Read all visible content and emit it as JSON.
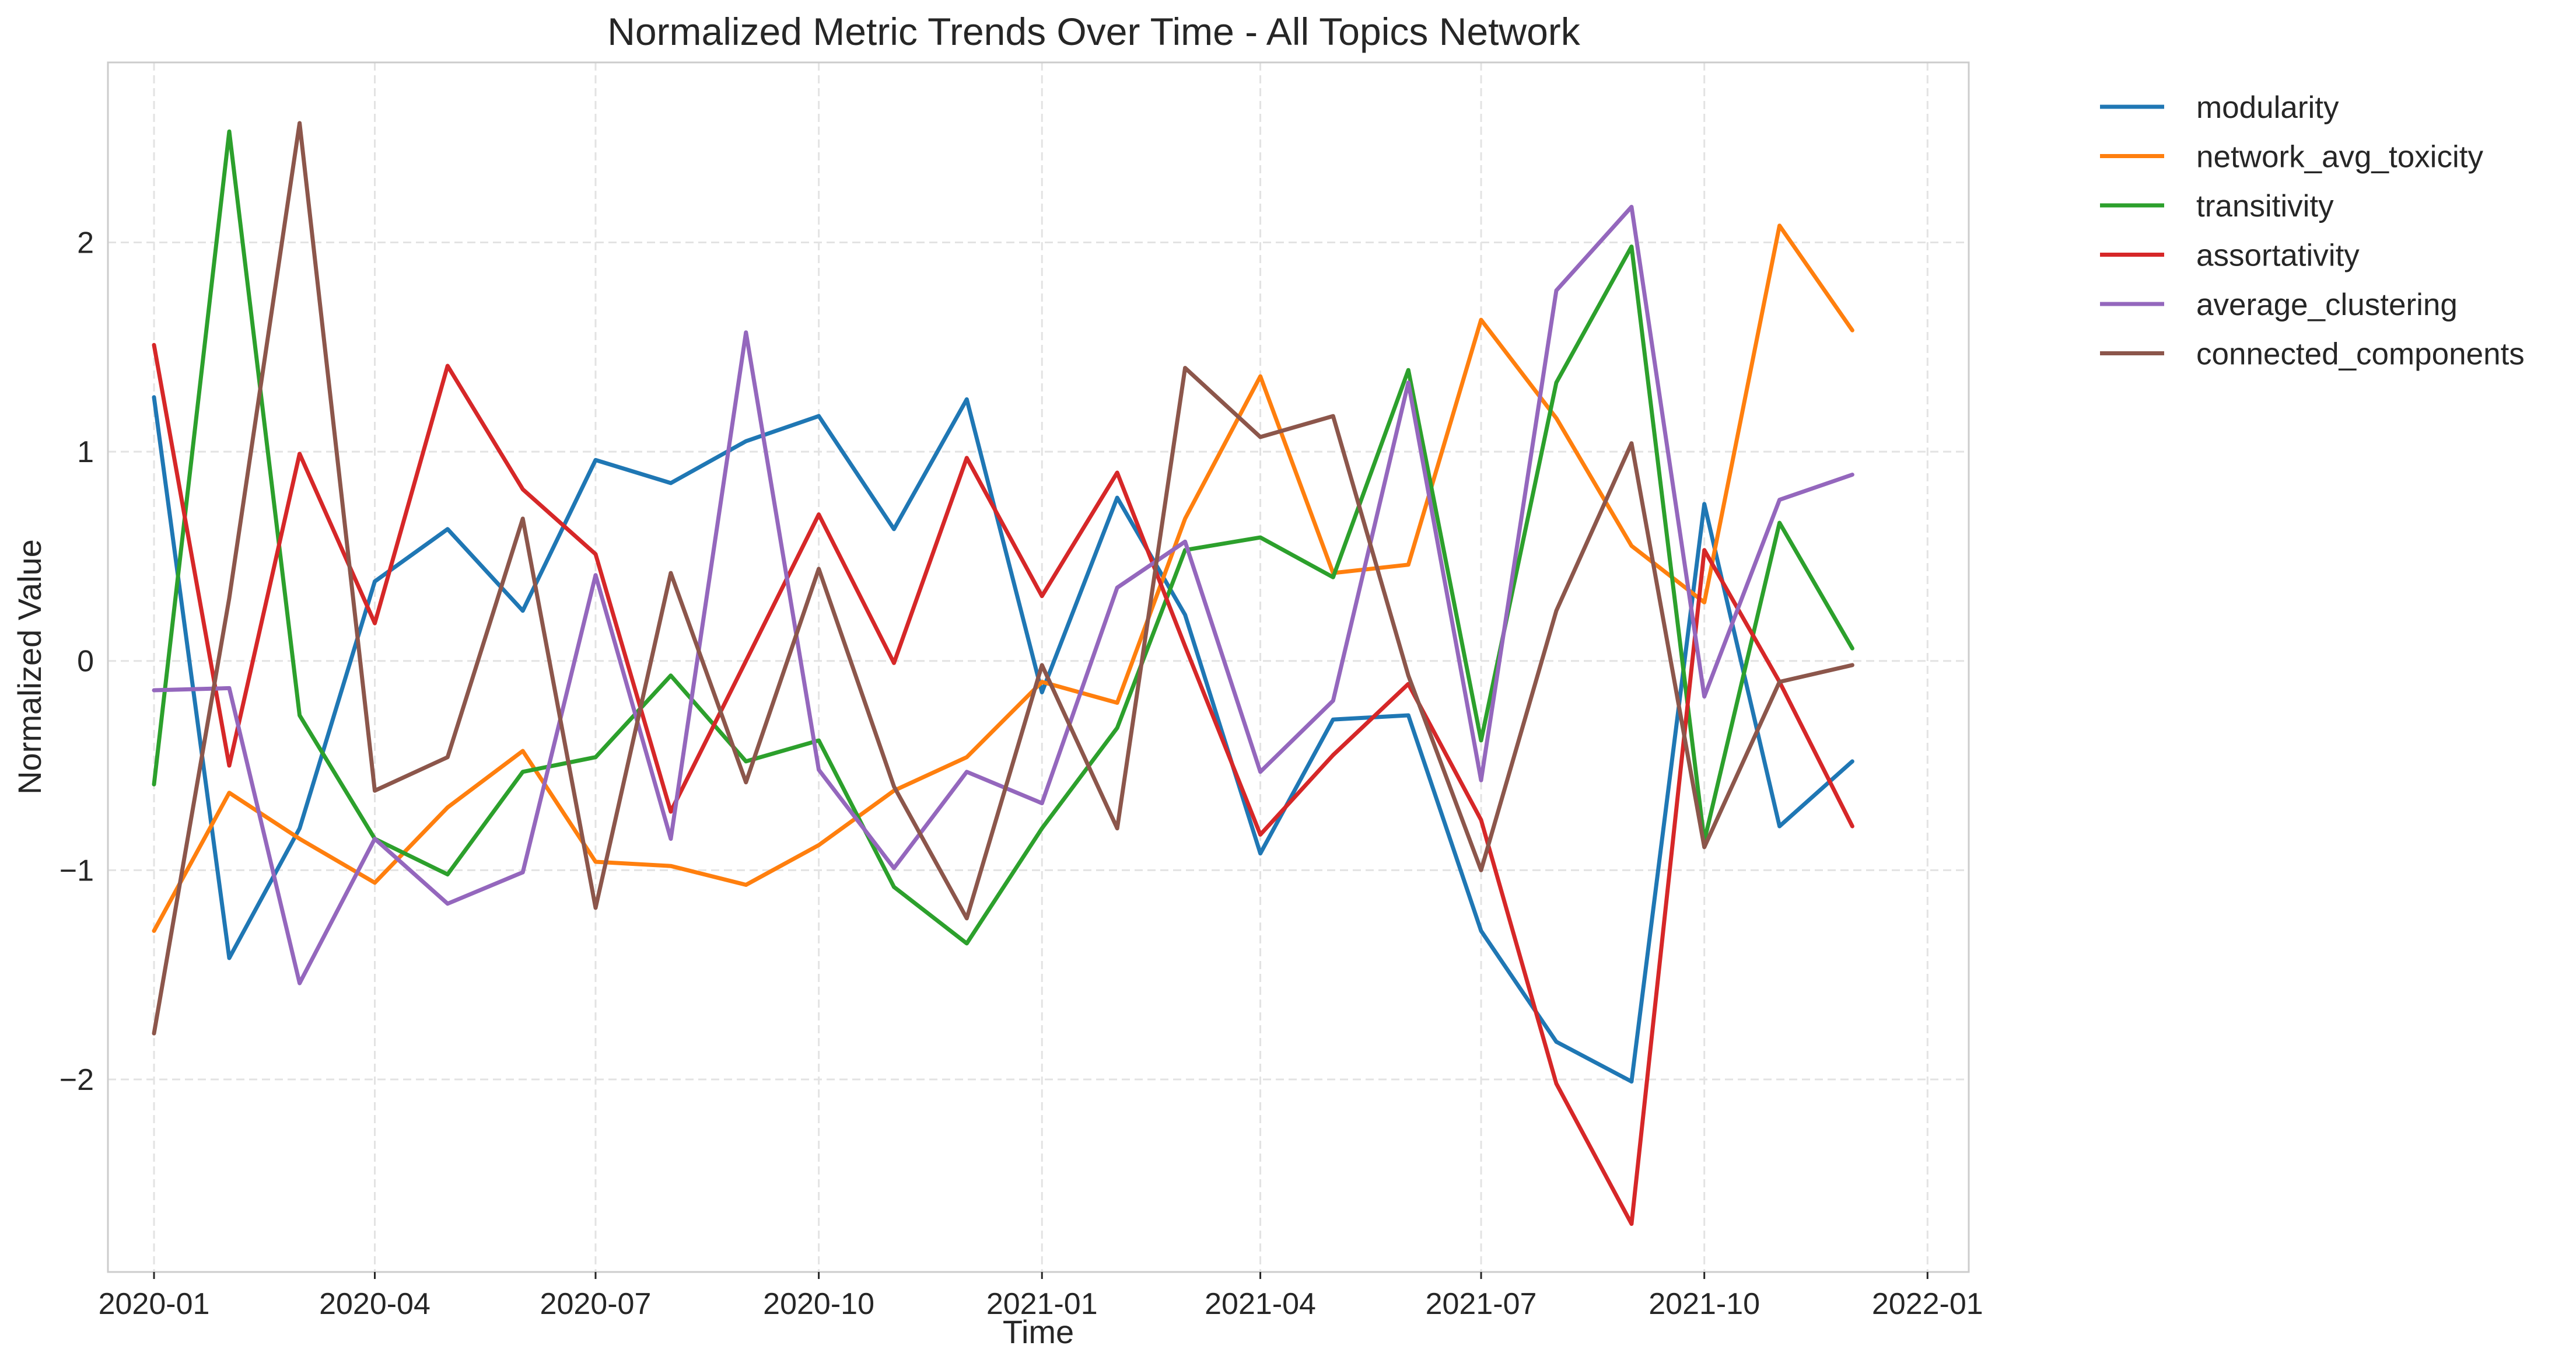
{
  "chart_data": {
    "type": "line",
    "title": "Normalized Metric Trends Over Time - All Topics Network",
    "xlabel": "Time",
    "ylabel": "Normalized Value",
    "x": [
      "2020-01-01",
      "2020-02-01",
      "2020-03-01",
      "2020-04-01",
      "2020-05-01",
      "2020-06-01",
      "2020-07-01",
      "2020-08-01",
      "2020-09-01",
      "2020-10-01",
      "2020-11-01",
      "2020-12-01",
      "2021-01-01",
      "2021-02-01",
      "2021-03-01",
      "2021-04-01",
      "2021-05-01",
      "2021-06-01",
      "2021-07-01",
      "2021-08-01",
      "2021-09-01",
      "2021-10-01",
      "2021-11-01",
      "2021-12-01"
    ],
    "xticks": [
      "2020-01",
      "2020-04",
      "2020-07",
      "2020-10",
      "2021-01",
      "2021-04",
      "2021-07",
      "2021-10",
      "2022-01"
    ],
    "yticks": [
      -2,
      -1,
      0,
      1,
      2
    ],
    "ytick_labels": [
      "−2",
      "−1",
      "0",
      "1",
      "2"
    ],
    "ylim": [
      -2.92,
      2.86
    ],
    "xlim": [
      "2019-12-13",
      "2022-01-18"
    ],
    "grid": true,
    "legend_position": "outside-right",
    "series": [
      {
        "name": "modularity",
        "color": "#1f77b4",
        "values": [
          1.26,
          -1.42,
          -0.8,
          0.38,
          0.63,
          0.24,
          0.96,
          0.85,
          1.05,
          1.17,
          0.63,
          1.25,
          -0.15,
          0.78,
          0.22,
          -0.92,
          -0.28,
          -0.26,
          -1.29,
          -1.82,
          -2.01,
          0.75,
          -0.79,
          -0.48
        ]
      },
      {
        "name": "network_avg_toxicity",
        "color": "#ff7f0e",
        "values": [
          -1.29,
          -0.63,
          -0.85,
          -1.06,
          -0.7,
          -0.43,
          -0.96,
          -0.98,
          -1.07,
          -0.88,
          -0.62,
          -0.46,
          -0.1,
          -0.2,
          0.68,
          1.36,
          0.42,
          0.46,
          1.63,
          1.16,
          0.55,
          0.28,
          2.08,
          1.58
        ]
      },
      {
        "name": "transitivity",
        "color": "#2ca02c",
        "values": [
          -0.59,
          2.53,
          -0.26,
          -0.85,
          -1.02,
          -0.53,
          -0.46,
          -0.07,
          -0.48,
          -0.38,
          -1.08,
          -1.35,
          -0.8,
          -0.32,
          0.53,
          0.59,
          0.4,
          1.39,
          -0.38,
          1.33,
          1.98,
          -0.86,
          0.66,
          0.06
        ]
      },
      {
        "name": "assortativity",
        "color": "#d62728",
        "values": [
          1.51,
          -0.5,
          0.99,
          0.18,
          1.41,
          0.82,
          0.51,
          -0.72,
          0.0,
          0.7,
          -0.01,
          0.97,
          0.31,
          0.9,
          0.07,
          -0.83,
          -0.45,
          -0.11,
          -0.76,
          -2.02,
          -2.69,
          0.53,
          -0.1,
          -0.79
        ]
      },
      {
        "name": "average_clustering",
        "color": "#9467bd",
        "values": [
          -0.14,
          -0.13,
          -1.54,
          -0.85,
          -1.16,
          -1.01,
          0.41,
          -0.85,
          1.57,
          -0.52,
          -0.99,
          -0.53,
          -0.68,
          0.35,
          0.57,
          -0.53,
          -0.19,
          1.33,
          -0.57,
          1.77,
          2.17,
          -0.17,
          0.77,
          0.89
        ]
      },
      {
        "name": "connected_components",
        "color": "#8c564b",
        "values": [
          -1.78,
          0.3,
          2.57,
          -0.62,
          -0.46,
          0.68,
          -1.18,
          0.42,
          -0.58,
          0.44,
          -0.6,
          -1.23,
          -0.02,
          -0.8,
          1.4,
          1.07,
          1.17,
          -0.07,
          -1.0,
          0.24,
          1.04,
          -0.89,
          -0.1,
          -0.02
        ]
      }
    ]
  }
}
